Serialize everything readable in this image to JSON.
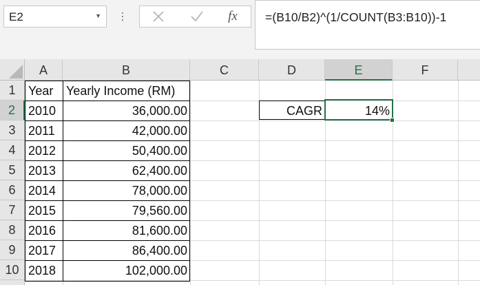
{
  "name_box": {
    "value": "E2"
  },
  "formula_bar": {
    "formula": "=(B10/B2)^(1/COUNT(B3:B10))-1",
    "fx_label": "fx"
  },
  "columns": [
    "A",
    "B",
    "C",
    "D",
    "E",
    "F"
  ],
  "rows": [
    "1",
    "2",
    "3",
    "4",
    "5",
    "6",
    "7",
    "8",
    "9",
    "10"
  ],
  "table": {
    "headers": {
      "year": "Year",
      "income": "Yearly Income (RM)"
    },
    "years": [
      "2010",
      "2011",
      "2012",
      "2013",
      "2014",
      "2015",
      "2016",
      "2017",
      "2018"
    ],
    "incomes": [
      "36,000.00",
      "42,000.00",
      "50,400.00",
      "62,400.00",
      "78,000.00",
      "79,560.00",
      "81,600.00",
      "86,400.00",
      "102,000.00"
    ]
  },
  "cagr": {
    "label": "CAGR",
    "value": "14%"
  },
  "colors": {
    "accent": "#217346",
    "header_bg": "#e6e6e6",
    "selected_header_bg": "#d2d2d2",
    "gridline": "#d9d9d9"
  }
}
